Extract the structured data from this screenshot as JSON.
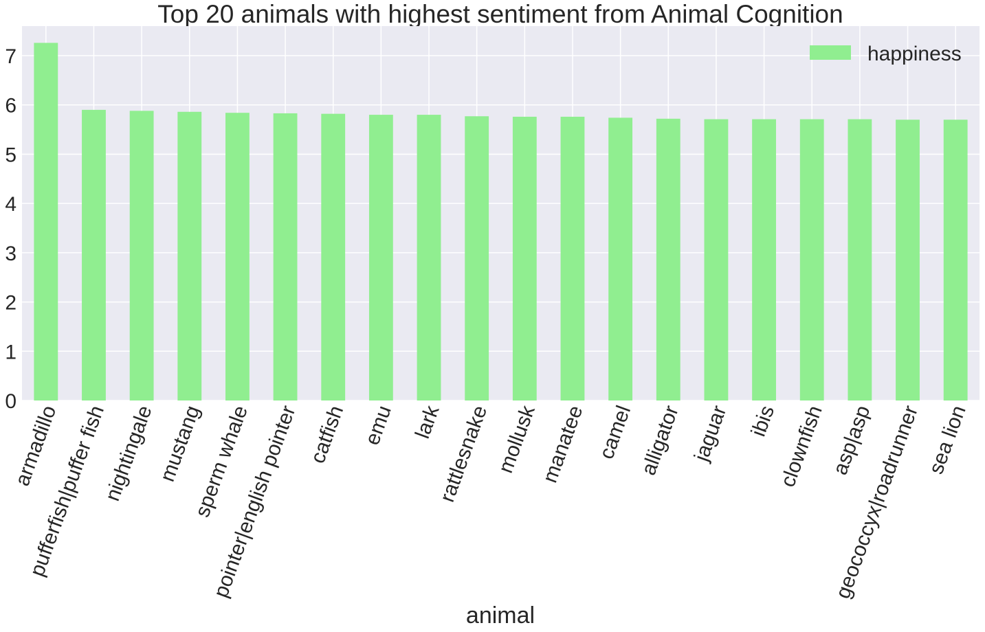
{
  "chart_data": {
    "type": "bar",
    "title": "Top 20 animals with highest sentiment from Animal Cognition",
    "xlabel": "animal",
    "ylabel": "",
    "ylim": [
      0,
      7.6
    ],
    "yticks": [
      0,
      1,
      2,
      3,
      4,
      5,
      6,
      7
    ],
    "grid": true,
    "legend_position": "top-right",
    "categories": [
      "armadillo",
      "pufferfish|puffer fish",
      "nightingale",
      "mustang",
      "sperm whale",
      "pointer|english pointer",
      "catfish",
      "emu",
      "lark",
      "rattlesnake",
      "mollusk",
      "manatee",
      "camel",
      "alligator",
      "jaguar",
      "ibis",
      "clownfish",
      "asp|asp",
      "geococcyx|roadrunner",
      "sea lion"
    ],
    "series": [
      {
        "name": "happiness",
        "color": "#90ee90",
        "values": [
          7.26,
          5.9,
          5.88,
          5.86,
          5.84,
          5.83,
          5.82,
          5.8,
          5.8,
          5.77,
          5.76,
          5.76,
          5.74,
          5.72,
          5.71,
          5.71,
          5.71,
          5.71,
          5.7,
          5.7
        ]
      }
    ]
  }
}
